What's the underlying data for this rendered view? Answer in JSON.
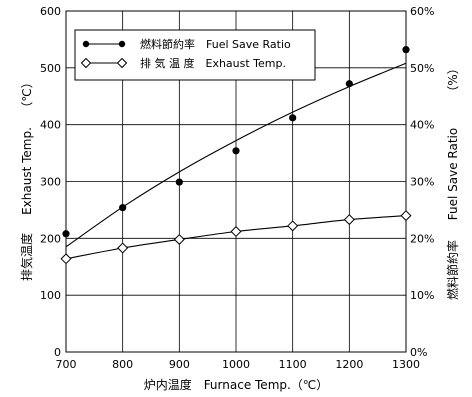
{
  "chart_data": {
    "type": "line",
    "title": "",
    "x": [
      700,
      800,
      900,
      1000,
      1100,
      1200,
      1300
    ],
    "xlim": [
      700,
      1300
    ],
    "xticks": [
      "700",
      "800",
      "900",
      "1000",
      "1100",
      "1200",
      "1300"
    ],
    "xlabel": "炉内温度　Furnace Temp.（℃）",
    "ylabel_left": "排気温度　Exhaust Temp.（℃）",
    "ylabel_left_jp": "排気温度",
    "ylabel_left_en": "Exhaust Temp.",
    "ylabel_left_unit": "（℃）",
    "ylim_left": [
      0,
      600
    ],
    "yticks_left": [
      "0",
      "100",
      "200",
      "300",
      "400",
      "500",
      "600"
    ],
    "ylabel_right": "燃料節約率　Fuel Save Ratio（%）",
    "ylabel_right_jp": "燃料節約率",
    "ylabel_right_en": "Fuel Save Ratio",
    "ylabel_right_unit": "（%）",
    "ylim_right": [
      0,
      60
    ],
    "yticks_right": [
      "0%",
      "10%",
      "20%",
      "30%",
      "40%",
      "50%",
      "60%"
    ],
    "grid": true,
    "legend_position": "top-left",
    "series": [
      {
        "name": "燃料節約率　Fuel Save Ratio",
        "axis": "right",
        "marker": "filled-circle",
        "points": [
          20.8,
          25.4,
          29.9,
          35.4,
          41.2,
          47.2,
          53.2
        ],
        "curve": [
          18.5,
          25.5,
          31.7,
          37.2,
          42.2,
          46.7,
          50.8
        ]
      },
      {
        "name": "排 気 温 度　Exhaust Temp.",
        "axis": "left",
        "marker": "open-diamond",
        "points": [
          164,
          183,
          198,
          212,
          222,
          233,
          240
        ],
        "curve": [
          164,
          183,
          198,
          212,
          222,
          233,
          240
        ]
      }
    ],
    "colors": {
      "line": "#000000",
      "grid": "#000000",
      "background": "#ffffff"
    }
  }
}
